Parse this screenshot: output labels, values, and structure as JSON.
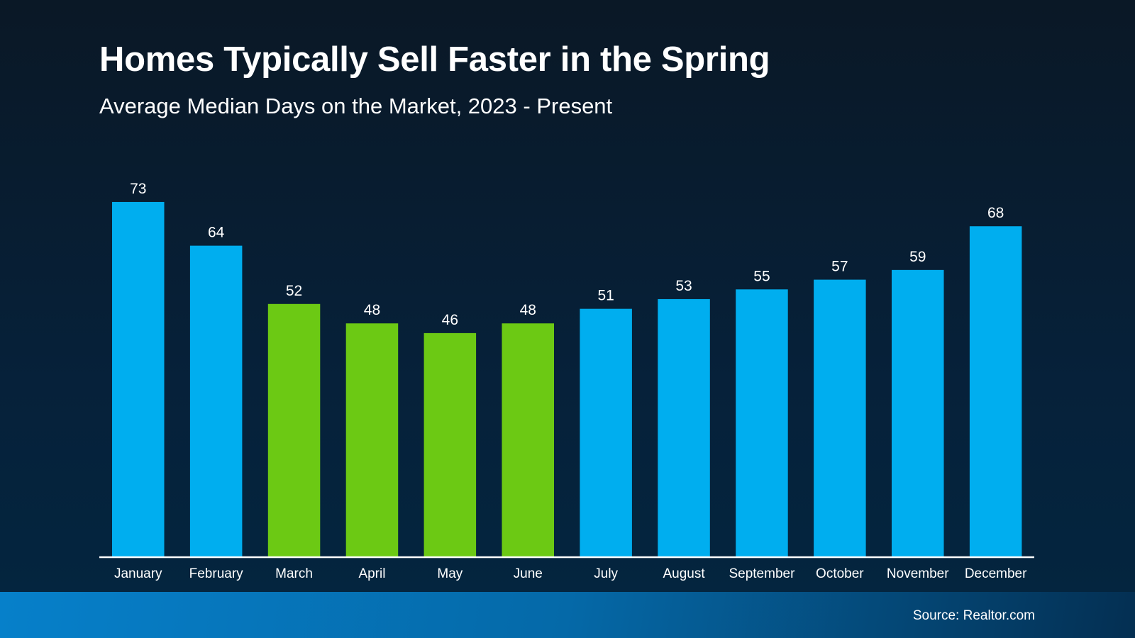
{
  "header": {
    "title": "Homes Typically Sell Faster in the Spring",
    "subtitle": "Average Median Days on the Market, 2023 - Present"
  },
  "footer": {
    "source": "Source: Realtor.com"
  },
  "chart_data": {
    "type": "bar",
    "title": "Homes Typically Sell Faster in the Spring",
    "subtitle": "Average Median Days on the Market, 2023 - Present",
    "categories": [
      "January",
      "February",
      "March",
      "April",
      "May",
      "June",
      "July",
      "August",
      "September",
      "October",
      "November",
      "December"
    ],
    "values": [
      73,
      64,
      52,
      48,
      46,
      48,
      51,
      53,
      55,
      57,
      59,
      68
    ],
    "highlighted": [
      false,
      false,
      true,
      true,
      true,
      true,
      false,
      false,
      false,
      false,
      false,
      false
    ],
    "colors": {
      "default": "#00aeef",
      "highlight": "#6cc914",
      "axis": "#ffffff"
    },
    "grid": false,
    "data_labels": true,
    "ylim": [
      0,
      73
    ]
  }
}
